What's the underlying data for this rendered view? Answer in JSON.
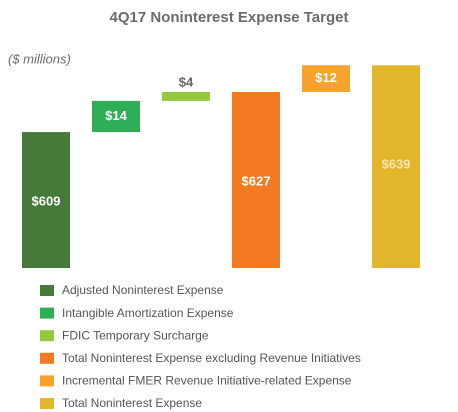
{
  "chart_data": {
    "type": "waterfall",
    "title": "4Q17 Noninterest Expense Target",
    "subtitle": "($ millions)",
    "categories": [
      "Adjusted Noninterest Expense",
      "Intangible Amortization Expense",
      "FDIC Temporary Surcharge",
      "Total Noninterest Expense excluding Revenue Initiatives",
      "Incremental FMER Revenue Initiative-related Expense",
      "Total Noninterest Expense"
    ],
    "values": [
      609,
      14,
      4,
      627,
      12,
      639
    ],
    "value_labels": [
      "$609",
      "$14",
      "$4",
      "$627",
      "$12",
      "$639"
    ],
    "colors": [
      "#457a3b",
      "#2fae58",
      "#93c83f",
      "#f37a21",
      "#f7a22b",
      "#e2b52b"
    ],
    "ylim": [
      548,
      640
    ]
  }
}
